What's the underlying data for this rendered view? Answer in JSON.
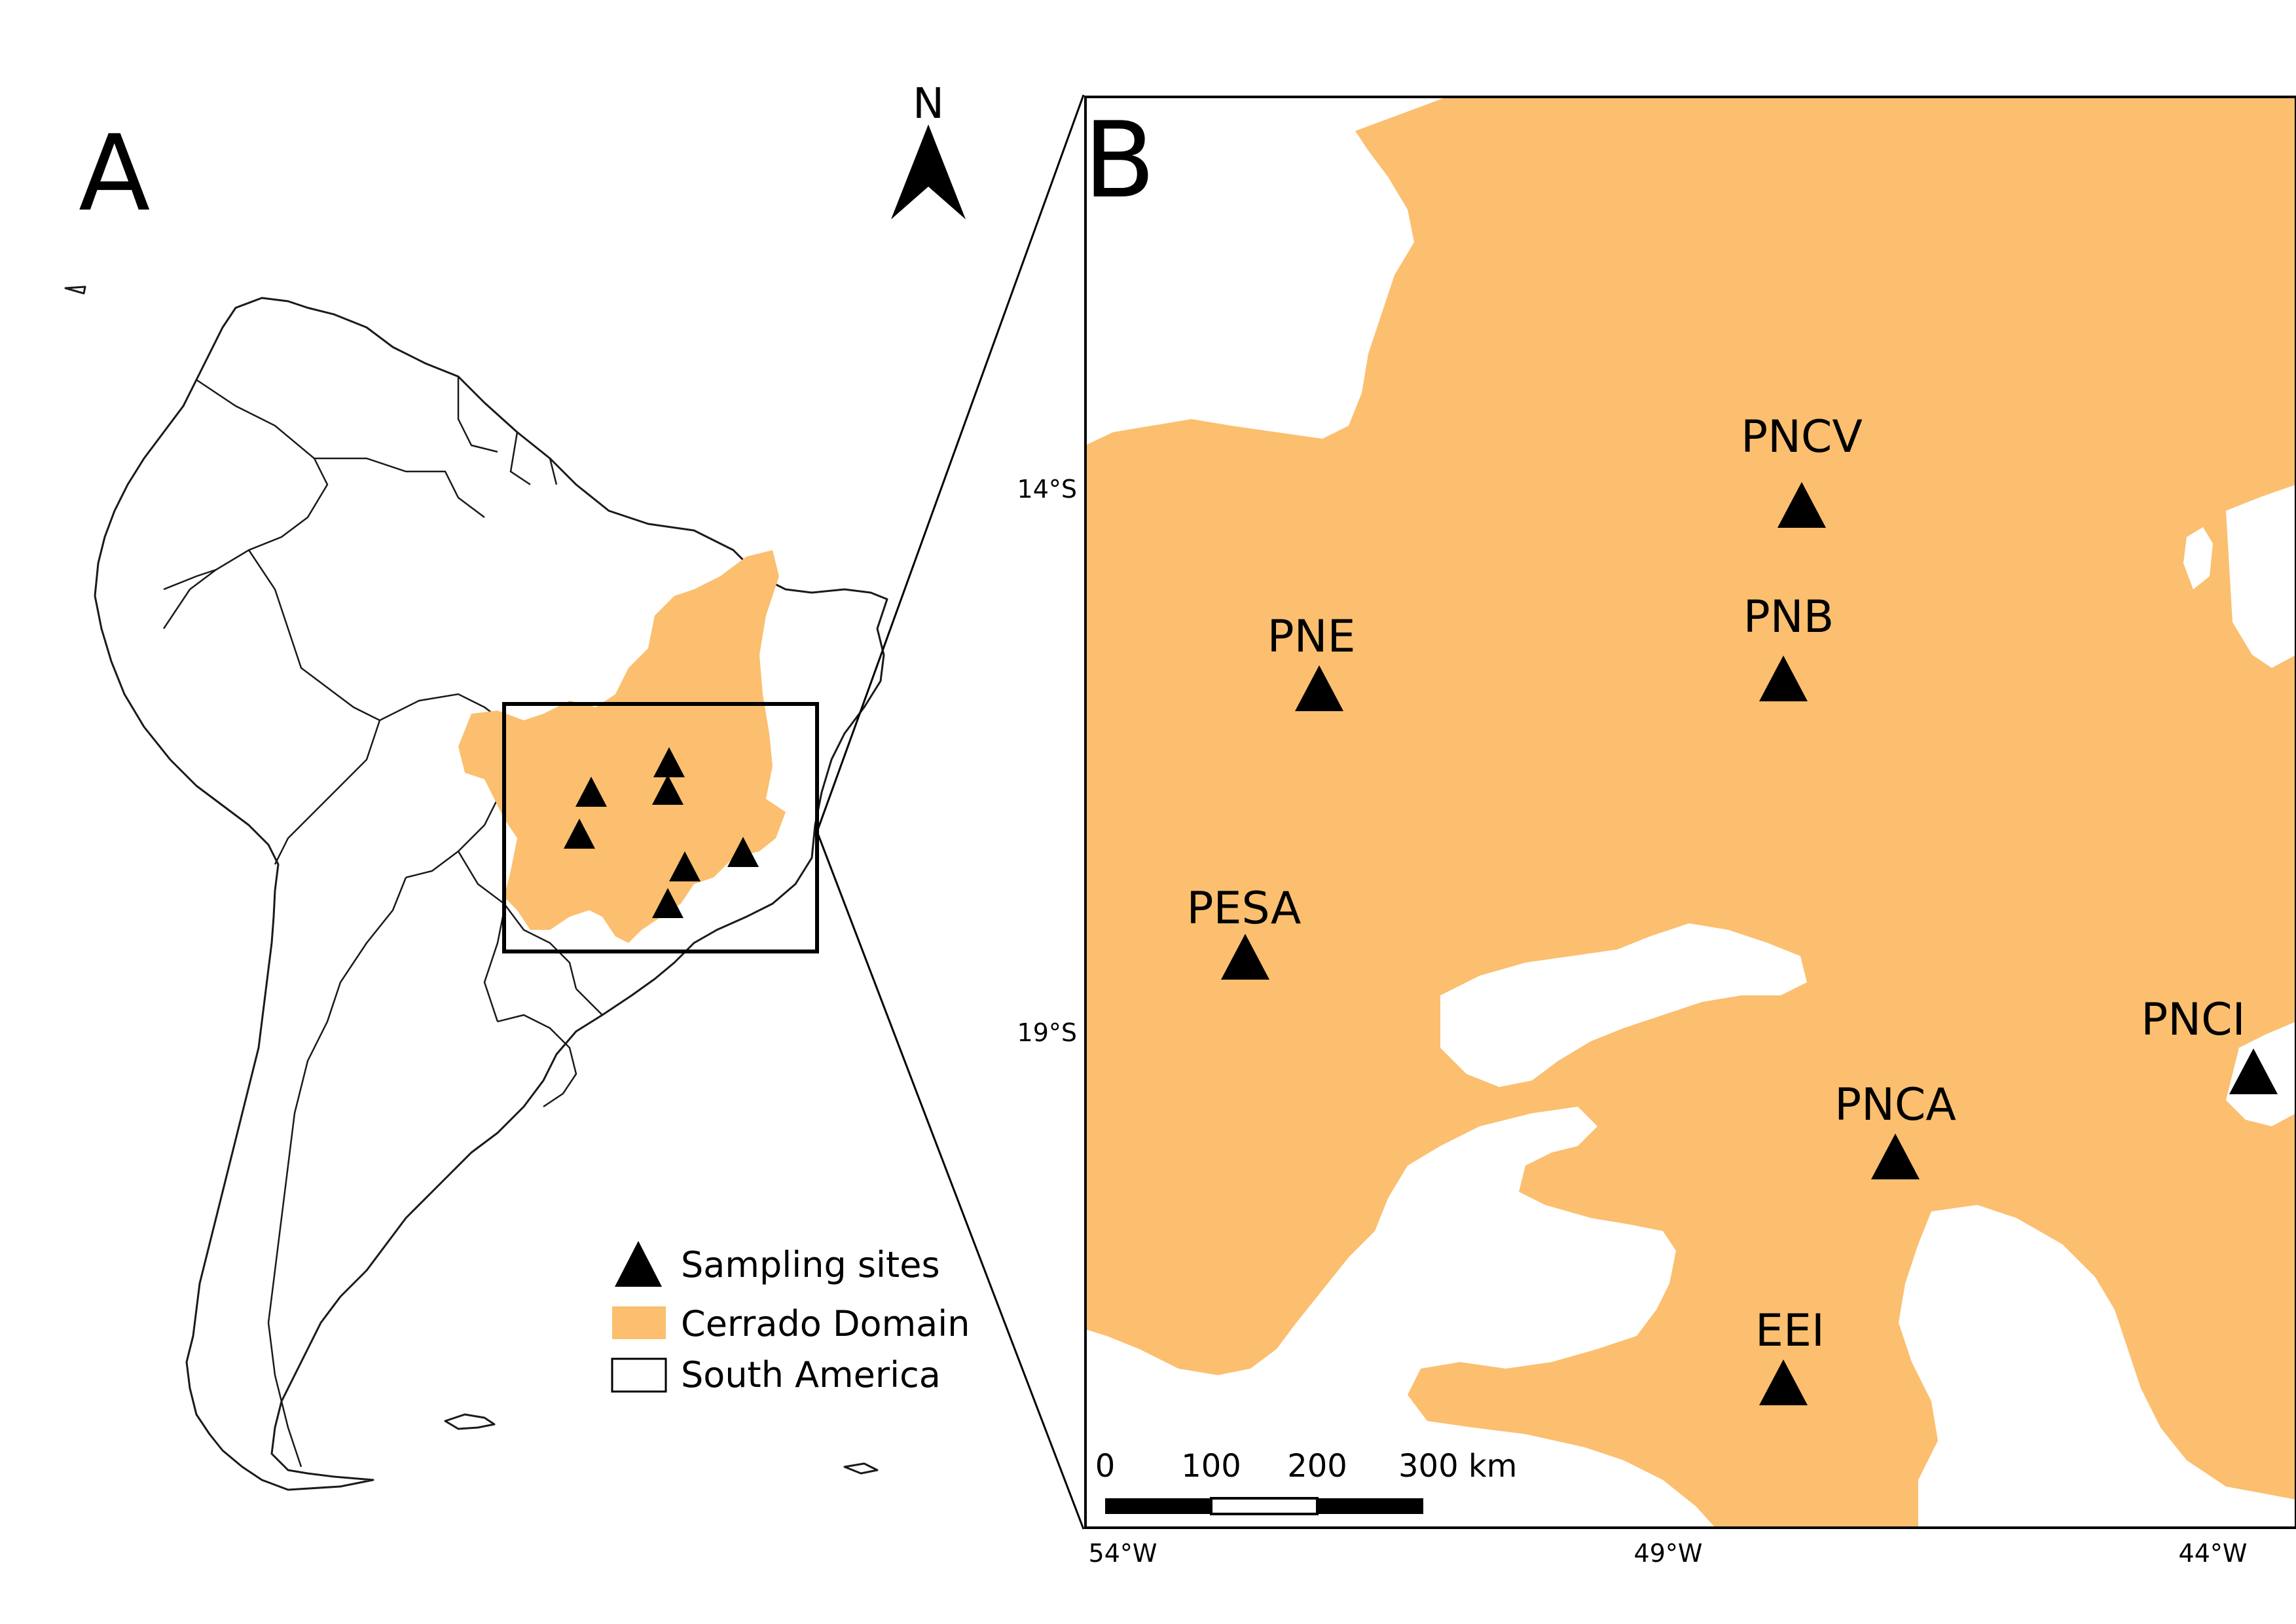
{
  "panel_a": {
    "label": "A",
    "north_label": "N",
    "legend": {
      "sampling_sites": "Sampling sites",
      "cerrado": "Cerrado Domain",
      "south_america": "South America"
    }
  },
  "panel_b": {
    "label": "B",
    "lat_ticks": [
      "14°S",
      "19°S"
    ],
    "lon_ticks": [
      "54°W",
      "49°W",
      "44°W"
    ],
    "scale_bar": {
      "labels": [
        "0",
        "100",
        "200",
        "300 km"
      ]
    },
    "sites": [
      {
        "name": "PNCV"
      },
      {
        "name": "PNB"
      },
      {
        "name": "PNE"
      },
      {
        "name": "PESA"
      },
      {
        "name": "PNCI"
      },
      {
        "name": "PNCA"
      },
      {
        "name": "EEI"
      }
    ]
  },
  "colors": {
    "cerrado": "#fbbf6f",
    "outline": "#000000",
    "background": "#ffffff"
  }
}
